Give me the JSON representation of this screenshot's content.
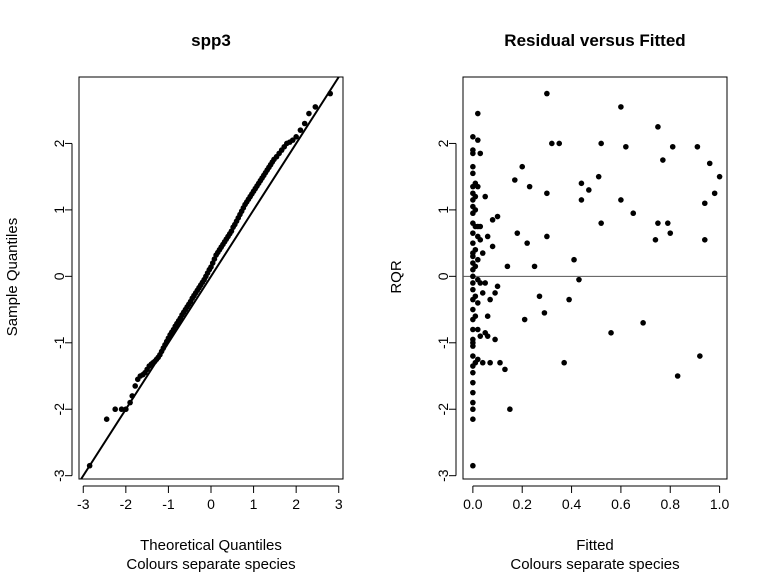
{
  "chart_data": [
    {
      "type": "scatter",
      "title": "spp3",
      "xlabel": "Theoretical Quantiles",
      "xlabel2": "Colours separate species",
      "ylabel": "Sample Quantiles",
      "xlim": [
        -3.1,
        3.1
      ],
      "ylim": [
        -3.05,
        3.0
      ],
      "xticks": [
        "-3",
        "-2",
        "-1",
        "0",
        "1",
        "2",
        "3"
      ],
      "yticks": [
        "-3",
        "-2",
        "-1",
        "0",
        "1",
        "2"
      ],
      "reference_line": {
        "intercept": 0.0,
        "slope": 1.0
      },
      "grid": false,
      "x": [
        -2.85,
        -2.45,
        -2.25,
        -2.1,
        -2.0,
        -1.9,
        -1.85,
        -1.78,
        -1.72,
        -1.66,
        -1.6,
        -1.55,
        -1.5,
        -1.45,
        -1.4,
        -1.36,
        -1.32,
        -1.28,
        -1.24,
        -1.2,
        -1.16,
        -1.12,
        -1.08,
        -1.04,
        -1.0,
        -0.96,
        -0.92,
        -0.88,
        -0.84,
        -0.8,
        -0.76,
        -0.72,
        -0.68,
        -0.64,
        -0.6,
        -0.56,
        -0.52,
        -0.48,
        -0.44,
        -0.4,
        -0.36,
        -0.32,
        -0.28,
        -0.24,
        -0.2,
        -0.16,
        -0.12,
        -0.08,
        -0.04,
        0.0,
        0.04,
        0.08,
        0.12,
        0.16,
        0.2,
        0.24,
        0.28,
        0.32,
        0.36,
        0.4,
        0.44,
        0.48,
        0.52,
        0.56,
        0.6,
        0.64,
        0.68,
        0.72,
        0.76,
        0.8,
        0.84,
        0.88,
        0.92,
        0.96,
        1.0,
        1.04,
        1.08,
        1.12,
        1.16,
        1.2,
        1.24,
        1.28,
        1.32,
        1.36,
        1.4,
        1.44,
        1.48,
        1.54,
        1.6,
        1.66,
        1.72,
        1.78,
        1.85,
        1.92,
        2.0,
        2.1,
        2.2,
        2.3,
        2.45,
        2.8
      ],
      "y": [
        -2.85,
        -2.15,
        -2.0,
        -2.0,
        -2.0,
        -1.9,
        -1.8,
        -1.65,
        -1.55,
        -1.5,
        -1.48,
        -1.45,
        -1.4,
        -1.35,
        -1.32,
        -1.3,
        -1.28,
        -1.25,
        -1.22,
        -1.18,
        -1.13,
        -1.08,
        -1.03,
        -0.98,
        -0.93,
        -0.88,
        -0.84,
        -0.8,
        -0.75,
        -0.71,
        -0.67,
        -0.63,
        -0.58,
        -0.54,
        -0.5,
        -0.46,
        -0.42,
        -0.38,
        -0.33,
        -0.29,
        -0.25,
        -0.21,
        -0.17,
        -0.13,
        -0.09,
        -0.05,
        0.0,
        0.05,
        0.1,
        0.14,
        0.2,
        0.26,
        0.32,
        0.36,
        0.4,
        0.44,
        0.48,
        0.52,
        0.56,
        0.6,
        0.64,
        0.68,
        0.74,
        0.78,
        0.83,
        0.88,
        0.93,
        0.98,
        1.03,
        1.08,
        1.12,
        1.16,
        1.2,
        1.24,
        1.28,
        1.32,
        1.36,
        1.4,
        1.44,
        1.48,
        1.52,
        1.56,
        1.6,
        1.64,
        1.68,
        1.72,
        1.76,
        1.8,
        1.85,
        1.9,
        1.95,
        2.0,
        2.02,
        2.05,
        2.1,
        2.2,
        2.3,
        2.45,
        2.55,
        2.75
      ]
    },
    {
      "type": "scatter",
      "title": "Residual versus Fitted",
      "xlabel": "Fitted",
      "xlabel2": "Colours separate species",
      "ylabel": "RQR",
      "xlim": [
        -0.04,
        1.03
      ],
      "ylim": [
        -3.05,
        3.0
      ],
      "xticks": [
        "0.0",
        "0.2",
        "0.4",
        "0.6",
        "0.8",
        "1.0"
      ],
      "yticks": [
        "-3",
        "-2",
        "-1",
        "0",
        "1",
        "2"
      ],
      "reference_line": {
        "type": "horizontal",
        "y": 0
      },
      "grid": false,
      "x": [
        0.0,
        0.0,
        0.0,
        0.0,
        0.0,
        0.0,
        0.0,
        0.0,
        0.0,
        0.0,
        0.0,
        0.0,
        0.0,
        0.0,
        0.0,
        0.0,
        0.0,
        0.0,
        0.0,
        0.0,
        0.0,
        0.0,
        0.0,
        0.0,
        0.0,
        0.0,
        0.0,
        0.0,
        0.0,
        0.0,
        0.0,
        0.0,
        0.0,
        0.0,
        0.0,
        0.0,
        0.01,
        0.01,
        0.01,
        0.01,
        0.01,
        0.01,
        0.01,
        0.01,
        0.01,
        0.02,
        0.02,
        0.02,
        0.02,
        0.02,
        0.02,
        0.02,
        0.02,
        0.02,
        0.02,
        0.03,
        0.03,
        0.03,
        0.03,
        0.03,
        0.04,
        0.04,
        0.04,
        0.05,
        0.05,
        0.05,
        0.06,
        0.06,
        0.06,
        0.07,
        0.07,
        0.08,
        0.08,
        0.09,
        0.09,
        0.1,
        0.1,
        0.11,
        0.13,
        0.14,
        0.15,
        0.17,
        0.18,
        0.2,
        0.21,
        0.22,
        0.23,
        0.25,
        0.27,
        0.29,
        0.3,
        0.3,
        0.3,
        0.32,
        0.35,
        0.37,
        0.39,
        0.41,
        0.43,
        0.44,
        0.44,
        0.47,
        0.51,
        0.52,
        0.52,
        0.56,
        0.6,
        0.6,
        0.62,
        0.65,
        0.69,
        0.74,
        0.75,
        0.75,
        0.77,
        0.79,
        0.8,
        0.81,
        0.83,
        0.91,
        0.92,
        0.94,
        0.94,
        0.96,
        0.98,
        1.0
      ],
      "y": [
        -2.85,
        -2.15,
        -2.0,
        -1.9,
        -1.75,
        -1.6,
        -1.45,
        -1.35,
        -1.2,
        -1.05,
        -0.95,
        -0.8,
        -0.65,
        -0.5,
        -0.35,
        -0.2,
        -0.1,
        0.0,
        0.1,
        0.2,
        0.35,
        0.5,
        0.65,
        0.8,
        0.95,
        1.05,
        1.15,
        1.25,
        1.35,
        1.55,
        1.65,
        1.85,
        1.9,
        2.1,
        -1.0,
        0.3,
        -1.3,
        -0.6,
        -0.3,
        0.15,
        0.4,
        0.75,
        1.0,
        1.2,
        1.4,
        -1.25,
        -0.8,
        -0.4,
        -0.05,
        0.25,
        0.6,
        0.75,
        1.35,
        2.05,
        2.45,
        -0.9,
        -0.1,
        0.55,
        1.85,
        0.75,
        -1.3,
        -0.25,
        0.35,
        -0.85,
        -0.1,
        1.2,
        -0.9,
        -0.6,
        0.6,
        -1.3,
        -0.35,
        0.45,
        0.85,
        -0.25,
        -0.95,
        -0.15,
        0.9,
        -1.3,
        -1.4,
        0.15,
        -2.0,
        1.45,
        0.65,
        1.65,
        -0.65,
        0.5,
        1.35,
        0.15,
        -0.3,
        -0.55,
        2.75,
        0.6,
        1.25,
        2.0,
        2.0,
        -1.3,
        -0.35,
        0.25,
        -0.05,
        1.15,
        1.4,
        1.3,
        1.5,
        2.0,
        0.8,
        -0.85,
        1.15,
        2.55,
        1.95,
        0.95,
        -0.7,
        0.55,
        2.25,
        0.8,
        1.75,
        0.8,
        0.65,
        1.95,
        -1.5,
        1.95,
        -1.2,
        1.1,
        0.55,
        1.7,
        1.25,
        1.5
      ]
    }
  ]
}
